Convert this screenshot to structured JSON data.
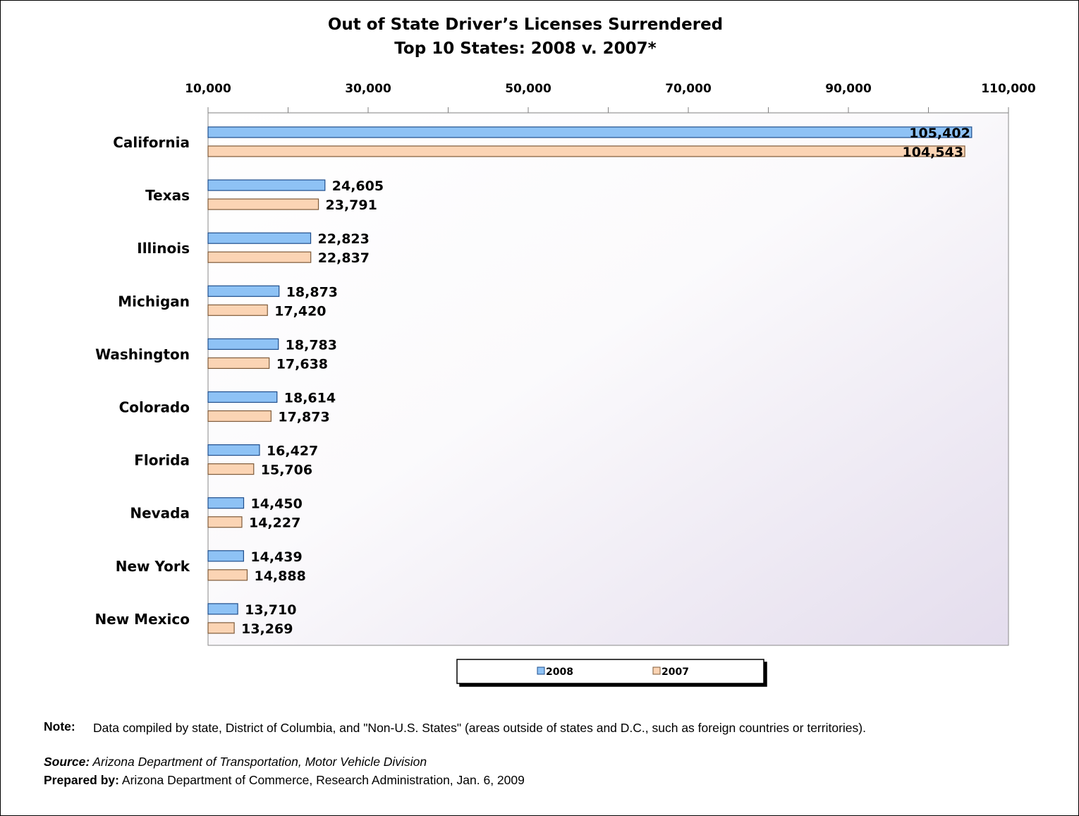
{
  "chart_data": {
    "type": "bar",
    "orientation": "horizontal",
    "title": "Out of State Driver’s Licenses Surrendered",
    "subtitle": "Top 10 States: 2008 v. 2007*",
    "categories": [
      "California",
      "Texas",
      "Illinois",
      "Michigan",
      "Washington",
      "Colorado",
      "Florida",
      "Nevada",
      "New York",
      "New Mexico"
    ],
    "series": [
      {
        "name": "2008",
        "color": "#8ec2f5",
        "values": [
          105402,
          24605,
          22823,
          18873,
          18783,
          18614,
          16427,
          14450,
          14439,
          13710
        ],
        "labels": [
          "105,402",
          "24,605",
          "22,823",
          "18,873",
          "18,783",
          "18,614",
          "16,427",
          "14,450",
          "14,439",
          "13,710"
        ]
      },
      {
        "name": "2007",
        "color": "#fbd4b4",
        "values": [
          104543,
          23791,
          22837,
          17420,
          17638,
          17873,
          15706,
          14227,
          14888,
          13269
        ],
        "labels": [
          "104,543",
          "23,791",
          "22,837",
          "17,420",
          "17,638",
          "17,873",
          "15,706",
          "14,227",
          "14,888",
          "13,269"
        ]
      }
    ],
    "xlim": [
      10000,
      110000
    ],
    "tick_values": [
      10000,
      30000,
      50000,
      70000,
      90000,
      110000
    ],
    "tick_labels": [
      "10,000",
      "30,000",
      "50,000",
      "70,000",
      "90,000",
      "110,000"
    ],
    "axis_position": "top",
    "legend_position": "bottom",
    "grid": false
  },
  "notes": {
    "note_label": "Note:",
    "note_text": "Data compiled by state, District of Columbia, and \"Non-U.S. States\" (areas outside of states and D.C., such as foreign countries or territories).",
    "source_label": "Source:",
    "source_text": "Arizona Department of Transportation, Motor Vehicle Division",
    "prepared_label": "Prepared by:",
    "prepared_text": "Arizona Department of Commerce, Research Administration, Jan. 6, 2009"
  }
}
